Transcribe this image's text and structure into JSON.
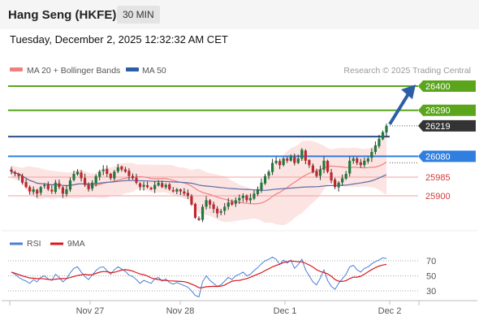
{
  "header": {
    "title": "Hang Seng (HKFE)",
    "timeframe": "30 MIN"
  },
  "datetime": "Tuesday, December 2, 2025 12:32:32 AM CET",
  "chart_data": {
    "type": "candlestick",
    "legend": [
      {
        "name": "MA 20 + Bollinger Bands",
        "color": "#f08080"
      },
      {
        "name": "MA 50",
        "color": "#2c5ea8"
      }
    ],
    "copyright": "Research © 2025 Trading Central",
    "y_range": [
      25630,
      26600
    ],
    "levels": [
      {
        "value": 26400,
        "label": "26400",
        "color": "#5aa51c",
        "style": "box"
      },
      {
        "value": 26290,
        "label": "26290",
        "color": "#5aa51c",
        "style": "box"
      },
      {
        "value": 26219,
        "label": "26219",
        "color": "#333333",
        "style": "box"
      },
      {
        "value": 26080,
        "label": "26080",
        "color": "#2f7ee0",
        "style": "box"
      },
      {
        "value": 25985,
        "label": "25985",
        "color": "#d33a3a",
        "style": "text"
      },
      {
        "value": 25900,
        "label": "25900",
        "color": "#d33a3a",
        "style": "text"
      }
    ],
    "resistance_line_value": 26170,
    "x_labels": [
      "Nov 27",
      "Nov 28",
      "Dec 1",
      "Dec 2"
    ],
    "closes": [
      26010,
      26000,
      25990,
      25960,
      25940,
      25920,
      25930,
      25910,
      25940,
      25950,
      25930,
      25920,
      25960,
      25940,
      25910,
      25930,
      25970,
      26000,
      26010,
      25980,
      25950,
      25930,
      25960,
      25990,
      26010,
      26020,
      26000,
      25980,
      26010,
      26030,
      26020,
      26010,
      25990,
      25980,
      25960,
      25940,
      25950,
      25940,
      25930,
      25950,
      25960,
      25940,
      25950,
      25930,
      25920,
      25930,
      25920,
      25910,
      25900,
      25860,
      25800,
      25790,
      25850,
      25880,
      25860,
      25840,
      25820,
      25830,
      25850,
      25870,
      25860,
      25880,
      25890,
      25900,
      25880,
      25890,
      25910,
      25930,
      25960,
      25990,
      26010,
      26050,
      26060,
      26040,
      26070,
      26060,
      26080,
      26050,
      26070,
      26110,
      26060,
      26040,
      26010,
      25990,
      26020,
      26060,
      26010,
      25970,
      25940,
      25960,
      25980,
      26000,
      26060,
      26070,
      26050,
      26040,
      26060,
      26070,
      26100,
      26130,
      26160,
      26190,
      26219
    ],
    "rsi": {
      "label": "RSI",
      "color": "#4a7fd4",
      "levels": [
        70,
        50,
        30
      ],
      "values": [
        55,
        52,
        48,
        45,
        43,
        40,
        45,
        42,
        48,
        50,
        46,
        44,
        52,
        48,
        42,
        46,
        54,
        60,
        62,
        55,
        49,
        45,
        51,
        57,
        61,
        62,
        57,
        52,
        58,
        62,
        59,
        56,
        51,
        49,
        45,
        40,
        44,
        42,
        40,
        46,
        48,
        43,
        46,
        41,
        39,
        41,
        39,
        37,
        35,
        30,
        24,
        22,
        42,
        50,
        44,
        40,
        36,
        38,
        43,
        48,
        45,
        50,
        52,
        55,
        50,
        52,
        57,
        61,
        66,
        70,
        72,
        75,
        72,
        65,
        71,
        67,
        71,
        60,
        65,
        72,
        58,
        50,
        42,
        38,
        47,
        58,
        44,
        36,
        32,
        40,
        46,
        52,
        62,
        64,
        58,
        55,
        60,
        62,
        66,
        69,
        71,
        74,
        73
      ],
      "ma_label": "9MA",
      "ma_color": "#d9181e"
    }
  }
}
